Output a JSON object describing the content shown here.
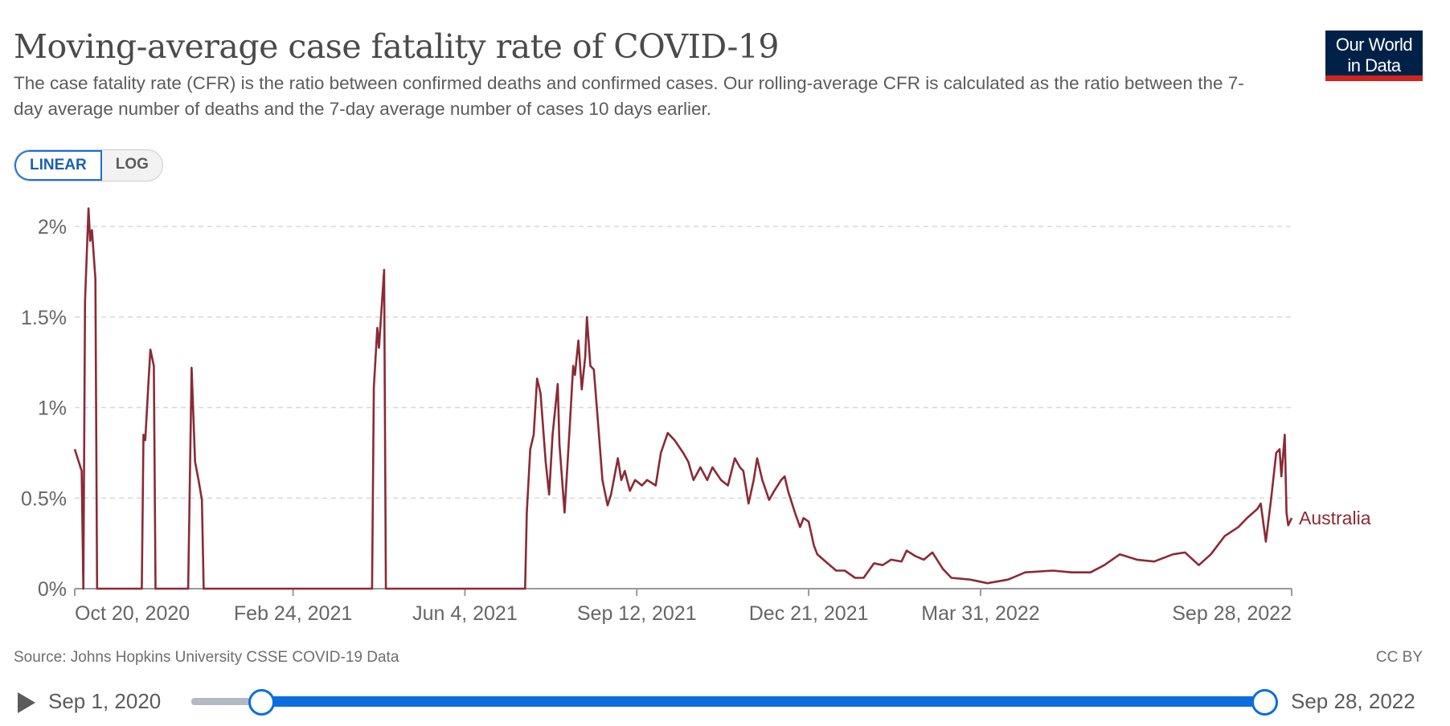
{
  "header": {
    "title": "Moving-average case fatality rate of COVID-19",
    "subtitle": "The case fatality rate (CFR) is the ratio between confirmed deaths and confirmed cases. Our rolling-average CFR is calculated as the ratio between the 7-day average number of deaths and the 7-day average number of cases 10 days earlier.",
    "logo_line1": "Our World",
    "logo_line2": "in Data"
  },
  "scale_toggle": {
    "linear": "LINEAR",
    "log": "LOG",
    "selected": "LINEAR"
  },
  "footer": {
    "source": "Source: Johns Hopkins University CSSE COVID-19 Data",
    "license": "CC BY"
  },
  "timeline": {
    "start_label": "Sep 1, 2020",
    "end_label": "Sep 28, 2022",
    "selected_start_fraction": 0.065,
    "selected_end_fraction": 1.0
  },
  "colors": {
    "series": "#8b2a35",
    "accent": "#0a6fdc",
    "logo_bg": "#002147",
    "logo_bar": "#ce261e"
  },
  "chart_data": {
    "type": "line",
    "title": "Moving-average case fatality rate of COVID-19",
    "xlabel": "",
    "ylabel": "",
    "x_unit": "days since Oct 20, 2020",
    "xlim": [
      0,
      708
    ],
    "ylim": [
      0,
      2.2
    ],
    "y_ticks": [
      0,
      0.5,
      1,
      1.5,
      2
    ],
    "y_tick_labels": [
      "0%",
      "0.5%",
      "1%",
      "1.5%",
      "2%"
    ],
    "x_ticks": [
      0,
      127,
      227,
      327,
      427,
      527,
      708
    ],
    "x_tick_labels": [
      "Oct 20, 2020",
      "Feb 24, 2021",
      "Jun 4, 2021",
      "Sep 12, 2021",
      "Dec 21, 2021",
      "Mar 31, 2022",
      "Sep 28, 2022"
    ],
    "grid": true,
    "series": [
      {
        "name": "Australia",
        "points": [
          [
            0,
            0.77
          ],
          [
            2,
            0.71
          ],
          [
            4,
            0.65
          ],
          [
            5,
            0
          ],
          [
            6,
            1.59
          ],
          [
            8,
            2.1
          ],
          [
            9,
            1.92
          ],
          [
            10,
            1.98
          ],
          [
            12,
            1.71
          ],
          [
            13,
            0
          ],
          [
            39,
            0
          ],
          [
            40,
            0.85
          ],
          [
            41,
            0.82
          ],
          [
            43,
            1.16
          ],
          [
            44,
            1.32
          ],
          [
            46,
            1.23
          ],
          [
            47,
            0
          ],
          [
            66,
            0
          ],
          [
            68,
            1.22
          ],
          [
            70,
            0.7
          ],
          [
            72,
            0.6
          ],
          [
            74,
            0.49
          ],
          [
            75,
            0
          ],
          [
            173,
            0
          ],
          [
            174,
            1.11
          ],
          [
            176,
            1.44
          ],
          [
            177,
            1.33
          ],
          [
            180,
            1.76
          ],
          [
            181,
            0
          ],
          [
            262,
            0
          ],
          [
            263,
            0.42
          ],
          [
            265,
            0.77
          ],
          [
            267,
            0.85
          ],
          [
            269,
            1.16
          ],
          [
            271,
            1.08
          ],
          [
            274,
            0.7
          ],
          [
            276,
            0.52
          ],
          [
            278,
            0.85
          ],
          [
            281,
            1.13
          ],
          [
            282,
            0.8
          ],
          [
            285,
            0.42
          ],
          [
            288,
            0.9
          ],
          [
            290,
            1.23
          ],
          [
            291,
            1.18
          ],
          [
            293,
            1.37
          ],
          [
            295,
            1.1
          ],
          [
            297,
            1.28
          ],
          [
            298,
            1.5
          ],
          [
            300,
            1.23
          ],
          [
            302,
            1.21
          ],
          [
            305,
            0.85
          ],
          [
            307,
            0.6
          ],
          [
            310,
            0.46
          ],
          [
            312,
            0.52
          ],
          [
            316,
            0.72
          ],
          [
            318,
            0.6
          ],
          [
            320,
            0.65
          ],
          [
            323,
            0.54
          ],
          [
            326,
            0.6
          ],
          [
            330,
            0.57
          ],
          [
            333,
            0.6
          ],
          [
            338,
            0.57
          ],
          [
            341,
            0.75
          ],
          [
            345,
            0.86
          ],
          [
            349,
            0.82
          ],
          [
            354,
            0.75
          ],
          [
            357,
            0.7
          ],
          [
            360,
            0.6
          ],
          [
            364,
            0.67
          ],
          [
            368,
            0.6
          ],
          [
            371,
            0.67
          ],
          [
            376,
            0.6
          ],
          [
            380,
            0.57
          ],
          [
            384,
            0.72
          ],
          [
            387,
            0.67
          ],
          [
            389,
            0.65
          ],
          [
            392,
            0.47
          ],
          [
            395,
            0.6
          ],
          [
            397,
            0.72
          ],
          [
            400,
            0.6
          ],
          [
            404,
            0.49
          ],
          [
            407,
            0.54
          ],
          [
            411,
            0.6
          ],
          [
            413,
            0.62
          ],
          [
            415,
            0.54
          ],
          [
            419,
            0.42
          ],
          [
            422,
            0.34
          ],
          [
            424,
            0.39
          ],
          [
            427,
            0.37
          ],
          [
            430,
            0.24
          ],
          [
            432,
            0.19
          ],
          [
            438,
            0.14
          ],
          [
            443,
            0.1
          ],
          [
            448,
            0.1
          ],
          [
            454,
            0.06
          ],
          [
            459,
            0.06
          ],
          [
            465,
            0.14
          ],
          [
            470,
            0.13
          ],
          [
            475,
            0.16
          ],
          [
            481,
            0.15
          ],
          [
            484,
            0.21
          ],
          [
            489,
            0.18
          ],
          [
            494,
            0.16
          ],
          [
            499,
            0.2
          ],
          [
            505,
            0.11
          ],
          [
            510,
            0.06
          ],
          [
            521,
            0.05
          ],
          [
            531,
            0.03
          ],
          [
            543,
            0.05
          ],
          [
            553,
            0.09
          ],
          [
            569,
            0.1
          ],
          [
            580,
            0.09
          ],
          [
            591,
            0.09
          ],
          [
            599,
            0.13
          ],
          [
            608,
            0.19
          ],
          [
            618,
            0.16
          ],
          [
            628,
            0.15
          ],
          [
            639,
            0.19
          ],
          [
            646,
            0.2
          ],
          [
            654,
            0.13
          ],
          [
            661,
            0.19
          ],
          [
            669,
            0.29
          ],
          [
            677,
            0.34
          ],
          [
            682,
            0.39
          ],
          [
            688,
            0.44
          ],
          [
            690,
            0.47
          ],
          [
            693,
            0.26
          ],
          [
            696,
            0.49
          ],
          [
            699,
            0.75
          ],
          [
            701,
            0.77
          ],
          [
            702,
            0.62
          ],
          [
            704,
            0.85
          ],
          [
            705,
            0.42
          ],
          [
            706,
            0.35
          ],
          [
            708,
            0.39
          ]
        ]
      }
    ]
  }
}
